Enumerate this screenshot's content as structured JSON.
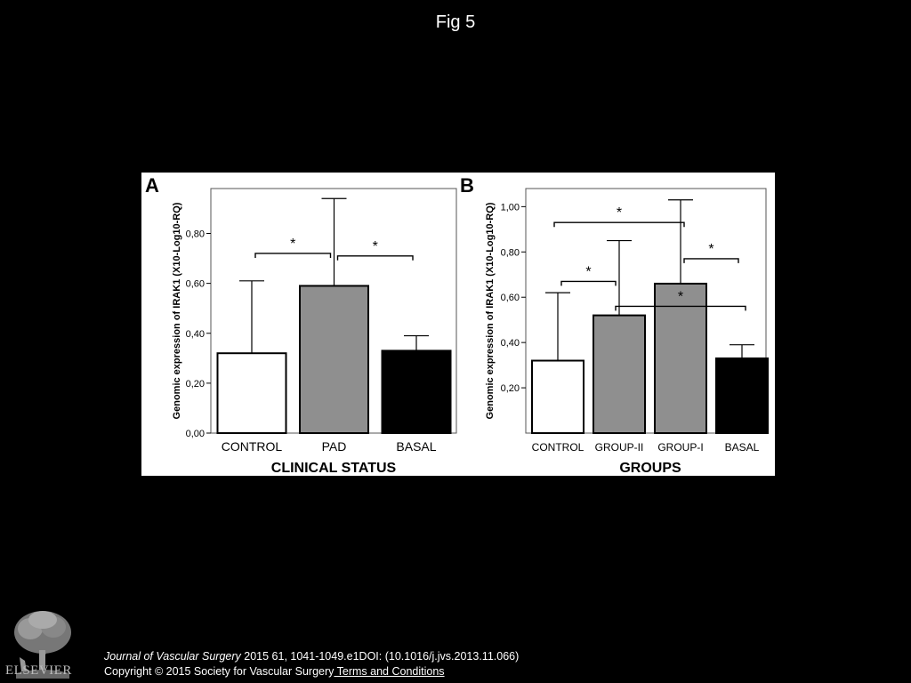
{
  "title": "Fig 5",
  "footer": {
    "journal": "Journal of Vascular Surgery",
    "citation": " 2015 61, 1041-1049.e1DOI: (10.1016/j.jvs.2013.11.066)",
    "copyright": "Copyright © 2015 Society for Vascular Surgery",
    "terms_link": " Terms and Conditions"
  },
  "logo_text": "ELSEVIER",
  "chart_data": [
    {
      "panel": "A",
      "type": "bar",
      "categories": [
        "CONTROL",
        "PAD",
        "BASAL"
      ],
      "values": [
        0.32,
        0.59,
        0.33
      ],
      "error_upper": [
        0.61,
        0.94,
        0.39
      ],
      "bar_colors": [
        "#ffffff",
        "#8f8f8f",
        "#000000"
      ],
      "ylabel": "Genomic expression of IRAK1 (X10-Log10-RQ)",
      "xlabel": "CLINICAL STATUS",
      "ylim": [
        0,
        0.98
      ],
      "yticks": [
        0,
        0.2,
        0.4,
        0.6,
        0.8
      ],
      "ytick_labels": [
        "0,00",
        "0,20",
        "0,40",
        "0,60",
        "0,80"
      ],
      "significance": [
        {
          "from": 0,
          "to": 1,
          "level": 0.72,
          "label": "*"
        },
        {
          "from": 1,
          "to": 2,
          "level": 0.71,
          "label": "*"
        }
      ]
    },
    {
      "panel": "B",
      "type": "bar",
      "categories": [
        "CONTROL",
        "GROUP-II",
        "GROUP-I",
        "BASAL"
      ],
      "values": [
        0.32,
        0.52,
        0.66,
        0.33
      ],
      "error_upper": [
        0.62,
        0.85,
        1.03,
        0.39
      ],
      "bar_colors": [
        "#ffffff",
        "#8f8f8f",
        "#8f8f8f",
        "#000000"
      ],
      "ylabel": "Genomic expression of IRAK1 (X10-Log10-RQ)",
      "xlabel": "GROUPS",
      "ylim": [
        0,
        1.08
      ],
      "yticks": [
        0.2,
        0.4,
        0.6,
        0.8,
        1.0
      ],
      "ytick_labels": [
        "0,20",
        "0,40",
        "0,60",
        "0,80",
        "1,00"
      ],
      "significance": [
        {
          "from": 0,
          "to": 2,
          "level": 0.93,
          "label": "*"
        },
        {
          "from": 0,
          "to": 1,
          "level": 0.67,
          "label": "*"
        },
        {
          "from": 1,
          "to": 3,
          "level": 0.56,
          "label": "*"
        },
        {
          "from": 2,
          "to": 3,
          "level": 0.77,
          "label": "*"
        }
      ]
    }
  ]
}
